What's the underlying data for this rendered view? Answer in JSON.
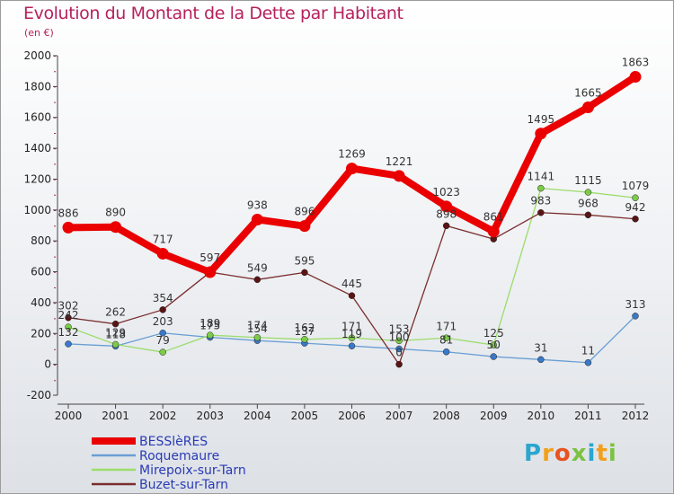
{
  "title": "Evolution du Montant de la Dette par Habitant",
  "unit_label": "(en €)",
  "brand": {
    "letters": [
      "P",
      "r",
      "o",
      "x",
      "i",
      "t",
      "i"
    ],
    "colors": [
      "#2aa6cf",
      "#f2a01b",
      "#e8531f",
      "#7cc242",
      "#2aa6cf",
      "#f2a01b",
      "#7cc242"
    ]
  },
  "chart_data": {
    "type": "line",
    "x": [
      "2000",
      "2001",
      "2002",
      "2003",
      "2004",
      "2005",
      "2006",
      "2007",
      "2008",
      "2009",
      "2010",
      "2011",
      "2012"
    ],
    "ylim": [
      -200,
      2000
    ],
    "yticks": [
      "-200",
      "0",
      "200",
      "400",
      "600",
      "800",
      "1000",
      "1200",
      "1400",
      "1600",
      "1800",
      "2000"
    ],
    "grid": false,
    "legend_position": "bottom-left",
    "series": [
      {
        "name": "BESSlèRES",
        "color": "#ea0000",
        "width": 8,
        "marker_r": 6.5,
        "values": [
          886,
          890,
          717,
          597,
          938,
          896,
          1269,
          1221,
          1023,
          861,
          1495,
          1665,
          1863
        ],
        "labels": [
          "886",
          "890",
          "717",
          "597",
          "938",
          "896",
          "1269",
          "1221",
          "1023",
          "861",
          "1495",
          "1665",
          "1863"
        ]
      },
      {
        "name": "Roquemaure",
        "color": "#6a9fd4",
        "marker": "#3b78c6",
        "width": 1.3,
        "marker_r": 3.5,
        "values": [
          132,
          118,
          203,
          175,
          154,
          137,
          119,
          100,
          81,
          50,
          31,
          11,
          313
        ],
        "labels": [
          "132",
          "118",
          "203",
          "175",
          "154",
          "137",
          "119",
          "100",
          "81",
          "50",
          "31",
          "11",
          "313"
        ]
      },
      {
        "name": "Mirepoix-sur-Tarn",
        "color": "#9bdc6b",
        "marker": "#7ccb49",
        "width": 1.3,
        "marker_r": 3.5,
        "values": [
          242,
          129,
          79,
          189,
          174,
          162,
          171,
          153,
          171,
          125,
          1141,
          1115,
          1079
        ],
        "labels": [
          "242",
          "129",
          "79",
          "189",
          "174",
          "162",
          "171",
          "153",
          "171",
          "125",
          "1141",
          "1115",
          "1079"
        ]
      },
      {
        "name": "Buzet-sur-Tarn",
        "color": "#7a2e2e",
        "marker": "#5a1414",
        "width": 1.3,
        "marker_r": 3.5,
        "values": [
          302,
          262,
          354,
          597,
          549,
          595,
          445,
          0,
          898,
          812,
          983,
          968,
          942
        ],
        "labels": [
          "302",
          "262",
          "354",
          "",
          "549",
          "595",
          "445",
          "0",
          "898",
          "",
          "983",
          "968",
          "942"
        ]
      }
    ]
  }
}
